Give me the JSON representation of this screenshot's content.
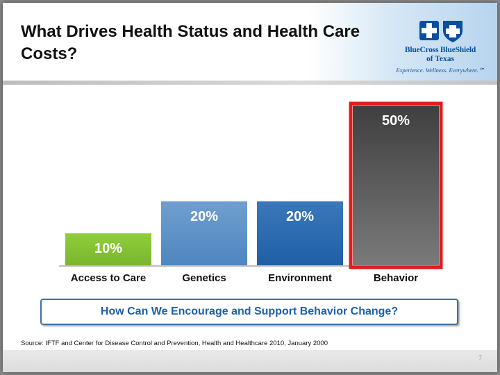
{
  "slide": {
    "title": "What Drives Health Status and Health Care Costs?",
    "logo": {
      "name": "BlueCross BlueShield",
      "sub": "of Texas",
      "tagline": "Experience. Wellness. Everywhere.℠"
    },
    "callout": "How Can We Encourage and Support Behavior Change?",
    "source": "Source: IFTF and Center for Disease Control and Prevention, Health and Healthcare 2010, January 2000",
    "page_number": "7"
  },
  "colors": {
    "access": "#8cc53f",
    "genetics": "#5b8fc5",
    "environment": "#2c6db3",
    "behavior": "#5a5a5a",
    "highlight": "#e31b1b"
  },
  "chart_data": {
    "type": "bar",
    "title": "",
    "xlabel": "",
    "ylabel": "",
    "ylim": [
      0,
      50
    ],
    "categories": [
      "Access to Care",
      "Genetics",
      "Environment",
      "Behavior"
    ],
    "values": [
      10,
      20,
      20,
      50
    ],
    "data_labels": [
      "10%",
      "20%",
      "20%",
      "50%"
    ],
    "highlighted_category": "Behavior",
    "grid": false,
    "legend": "none"
  }
}
